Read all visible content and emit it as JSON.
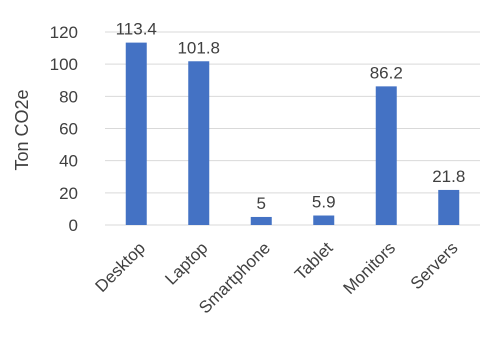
{
  "chart_data": {
    "type": "bar",
    "title": "",
    "xlabel": "",
    "ylabel": "Ton CO2e",
    "categories": [
      "Desktop",
      "Laptop",
      "Smartphone",
      "Tablet",
      "Monitors",
      "Servers"
    ],
    "values": [
      113.4,
      101.8,
      5,
      5.9,
      86.2,
      21.8
    ],
    "data_labels": [
      "113.4",
      "101.8",
      "5",
      "5.9",
      "86.2",
      "21.8"
    ],
    "ylim": [
      0,
      120
    ],
    "yticks": [
      0,
      20,
      40,
      60,
      80,
      100,
      120
    ],
    "grid": true,
    "legend": "none",
    "bar_color": "#4472C4",
    "grid_color": "#D9D9D9"
  }
}
